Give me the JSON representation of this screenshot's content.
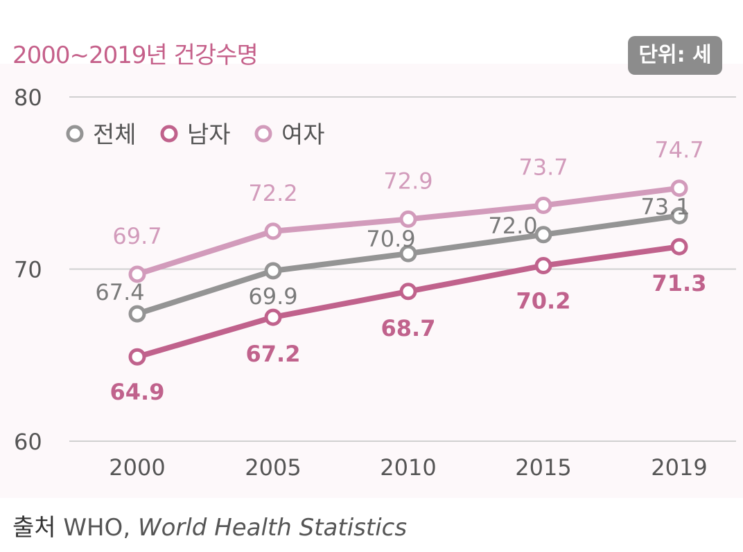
{
  "title": "2000~2019년 건강수명",
  "unit_badge": "단위: 세",
  "source": {
    "label": "출처",
    "org": "WHO,",
    "title": "World Health Statistics"
  },
  "colors": {
    "grid": "#d0d0d0",
    "axis_text": "#555555"
  },
  "chart_data": {
    "type": "line",
    "x": [
      "2000",
      "2005",
      "2010",
      "2015",
      "2019"
    ],
    "ylim": [
      60,
      80
    ],
    "yticks": [
      60,
      70,
      80
    ],
    "grid": true,
    "legend_position": "top-left",
    "series": [
      {
        "name": "전체",
        "color": "#949494",
        "label_color": "#7a7a7a",
        "label_bold": false,
        "values": [
          67.4,
          69.9,
          70.9,
          72.0,
          73.1
        ]
      },
      {
        "name": "남자",
        "color": "#c0628c",
        "label_color": "#c0628c",
        "label_bold": true,
        "values": [
          64.9,
          67.2,
          68.7,
          70.2,
          71.3
        ]
      },
      {
        "name": "여자",
        "color": "#d29bbb",
        "label_color": "#d29bbb",
        "label_bold": false,
        "values": [
          69.7,
          72.2,
          72.9,
          73.7,
          74.7
        ]
      }
    ]
  }
}
